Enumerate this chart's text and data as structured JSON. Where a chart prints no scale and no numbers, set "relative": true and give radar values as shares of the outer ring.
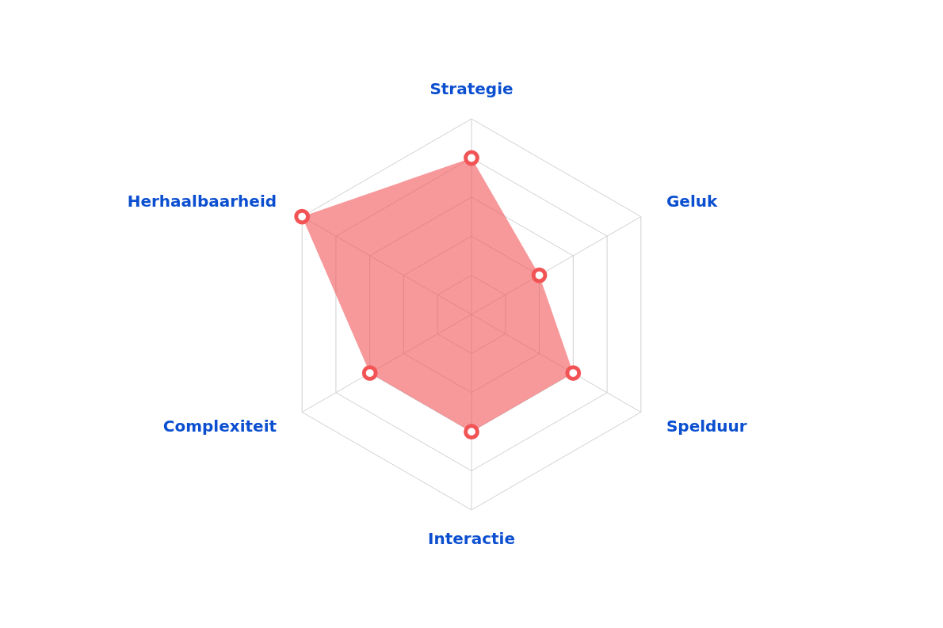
{
  "chart_data": {
    "type": "radar",
    "relative": true,
    "grid": true,
    "marker": "circle",
    "categories": [
      "Strategie",
      "Geluk",
      "Spelduur",
      "Interactie",
      "Complexiteit",
      "Herhaalbaarheid"
    ],
    "series": [
      {
        "color": "#f25456",
        "values": [
          0.8,
          0.4,
          0.6,
          0.6,
          0.6,
          1.0
        ]
      }
    ]
  }
}
